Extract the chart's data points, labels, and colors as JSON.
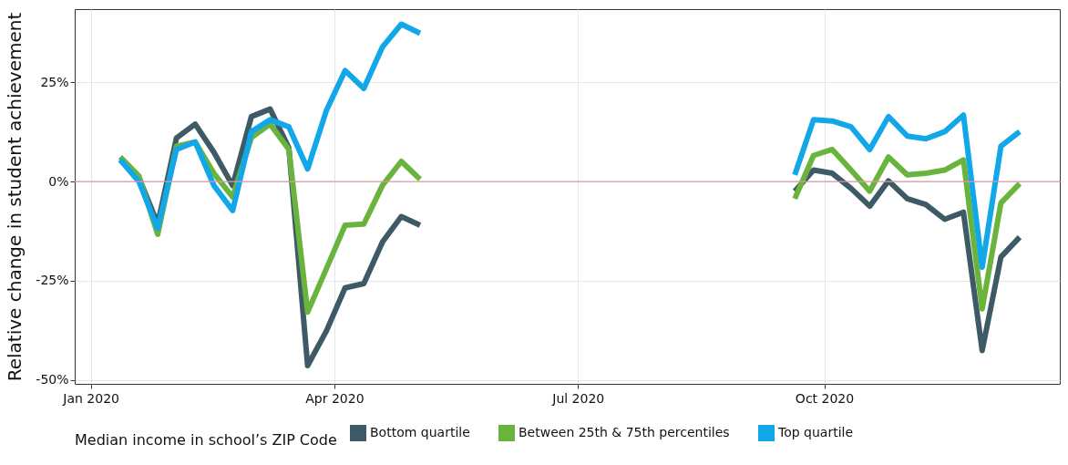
{
  "chart_data": {
    "type": "line",
    "ylabel": "Relative change in student achievement",
    "legend_title": "Median income in school’s ZIP Code",
    "x": [
      "2020-01-12",
      "2020-01-19",
      "2020-01-26",
      "2020-02-02",
      "2020-02-09",
      "2020-02-16",
      "2020-02-23",
      "2020-03-01",
      "2020-03-08",
      "2020-03-15",
      "2020-03-22",
      "2020-03-29",
      "2020-04-05",
      "2020-04-12",
      "2020-04-19",
      "2020-04-26",
      "2020-05-03",
      "2020-05-10",
      "2020-09-20",
      "2020-09-27",
      "2020-10-04",
      "2020-10-11",
      "2020-10-18",
      "2020-10-25",
      "2020-11-01",
      "2020-11-08",
      "2020-11-15",
      "2020-11-22",
      "2020-11-29",
      "2020-12-06",
      "2020-12-13"
    ],
    "series": [
      {
        "name": "Bottom quartile",
        "color": "#3d5a66",
        "values": [
          5.5,
          1,
          -10.7,
          11,
          14.5,
          7.4,
          -1,
          16.4,
          18.3,
          8.5,
          -46.4,
          -37.7,
          -26.8,
          -25.7,
          -15.2,
          -8.8,
          -11,
          null,
          -2.4,
          2.9,
          2.1,
          -1.7,
          -6.2,
          0.2,
          -4.3,
          -5.8,
          -9.5,
          -7.7,
          -42.6,
          -19,
          -14
        ]
      },
      {
        "name": "Between 25th & 75th percentiles",
        "color": "#6ab43e",
        "values": [
          6.2,
          1.4,
          -13.3,
          8.9,
          10,
          2.1,
          -3.9,
          11.1,
          14.5,
          8.1,
          -32.9,
          -22,
          -11,
          -10.7,
          -0.9,
          5.1,
          0.6,
          null,
          -4.3,
          6.6,
          8.1,
          2.9,
          -2.4,
          6.2,
          1.7,
          2.1,
          2.9,
          5.5,
          -32.1,
          -5.4,
          -0.5
        ]
      },
      {
        "name": "Top quartile",
        "color": "#12a7e8",
        "values": [
          5.5,
          0,
          -11.8,
          8.1,
          10,
          -1,
          -7.3,
          12.6,
          15.6,
          13.8,
          3.2,
          17.9,
          28,
          23.5,
          34,
          39.7,
          37.4,
          null,
          1.7,
          15.6,
          15.3,
          13.8,
          8.1,
          16.4,
          11.5,
          10.8,
          12.6,
          16.8,
          -21.6,
          8.9,
          12.6
        ]
      }
    ],
    "xlim": [
      "2019-12-26",
      "2020-12-28"
    ],
    "xticks": [
      {
        "value": "2020-01-01",
        "label": "Jan 2020"
      },
      {
        "value": "2020-04-01",
        "label": "Apr 2020"
      },
      {
        "value": "2020-07-01",
        "label": "Jul 2020"
      },
      {
        "value": "2020-10-01",
        "label": "Oct 2020"
      }
    ],
    "ylim": [
      -51,
      43.5
    ],
    "yticks": [
      {
        "value": -50,
        "label": "-50%"
      },
      {
        "value": -25,
        "label": "-25%"
      },
      {
        "value": 0,
        "label": "0%"
      },
      {
        "value": 25,
        "label": "25%"
      }
    ],
    "ref_lines": [
      {
        "axis": "y",
        "value": 0,
        "color": "#d99aa3"
      }
    ],
    "grid": true,
    "legend": "bottom",
    "line_style": "solid"
  }
}
